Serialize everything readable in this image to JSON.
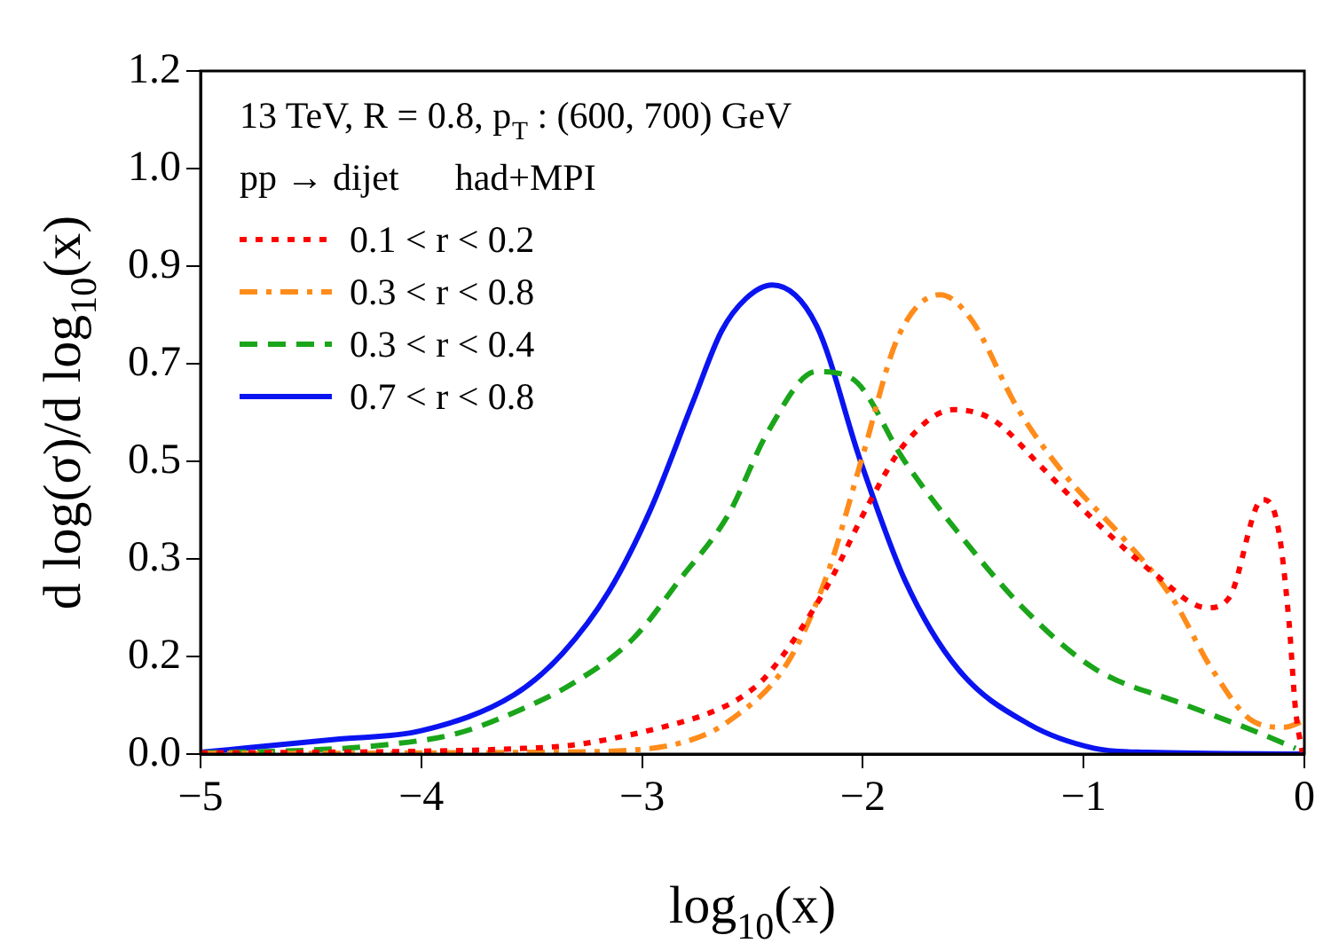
{
  "chart_data": {
    "type": "line",
    "xlabel": "log$_{10}$(x)",
    "ylabel": "d log(σ)/d log$_{10}$(x)",
    "annotations": [
      "13 TeV, R = 0.8, p$_{T}$ : (600, 700) GeV",
      "pp → dijet      had+MPI"
    ],
    "xlim": [
      -5,
      0
    ],
    "xticks": [
      -5,
      -4,
      -3,
      -2,
      -1,
      0
    ],
    "ylim": [
      0,
      1.2
    ],
    "yticks": [
      {
        "value": 0,
        "label": "0.0"
      },
      {
        "value": 0.1714,
        "label": "0.2"
      },
      {
        "value": 0.3429,
        "label": "0.3"
      },
      {
        "value": 0.5143,
        "label": "0.5"
      },
      {
        "value": 0.6857,
        "label": "0.7"
      },
      {
        "value": 0.8571,
        "label": "0.9"
      },
      {
        "value": 1.0286,
        "label": "1.0"
      },
      1.2
    ],
    "grid": false,
    "legend": "top left",
    "marker": "none",
    "series": [
      {
        "name": "0.1 < r < 0.2",
        "color": "#ff0000",
        "line_style": "dotted",
        "x": [
          -5,
          -4.5,
          -4,
          -3.6,
          -3.31,
          -2.91,
          -2.69,
          -2.55,
          -2.43,
          -2.16,
          -1.97,
          -1.81,
          -1.59,
          -1.41,
          -1.19,
          -0.95,
          -0.68,
          -0.44,
          -0.34,
          -0.19,
          -0.12,
          -0.07,
          -0.04,
          -0.01
        ],
        "values": [
          0.002,
          0.003,
          0.005,
          0.009,
          0.016,
          0.047,
          0.073,
          0.1,
          0.14,
          0.296,
          0.442,
          0.545,
          0.605,
          0.587,
          0.504,
          0.41,
          0.317,
          0.257,
          0.275,
          0.447,
          0.4,
          0.234,
          0.078,
          0.003
        ]
      },
      {
        "name": "0.3 < r < 0.8",
        "color": "#ff8c1a",
        "line_style": "dashdot",
        "x": [
          -5,
          -4.5,
          -4,
          -3.5,
          -3.04,
          -2.77,
          -2.61,
          -2.34,
          -2.16,
          -2,
          -1.84,
          -1.65,
          -1.51,
          -1.3,
          -1.09,
          -0.82,
          -0.6,
          -0.42,
          -0.23,
          -0.09,
          -0.01
        ],
        "values": [
          0.001,
          0.001,
          0.002,
          0.003,
          0.007,
          0.026,
          0.057,
          0.161,
          0.317,
          0.525,
          0.733,
          0.807,
          0.764,
          0.608,
          0.493,
          0.379,
          0.275,
          0.15,
          0.057,
          0.047,
          0.057
        ]
      },
      {
        "name": "0.3 < r < 0.4",
        "color": "#1aa51a",
        "line_style": "dashed",
        "x": [
          -5,
          -4.5,
          -4.17,
          -3.84,
          -3.58,
          -3.31,
          -3.04,
          -2.83,
          -2.61,
          -2.43,
          -2.21,
          -2.05,
          -1.81,
          -1.57,
          -1.27,
          -0.95,
          -0.55,
          -0.23,
          -0.04
        ],
        "values": [
          0.002,
          0.007,
          0.016,
          0.036,
          0.073,
          0.125,
          0.203,
          0.306,
          0.42,
          0.566,
          0.672,
          0.66,
          0.514,
          0.39,
          0.255,
          0.15,
          0.088,
          0.041,
          0.01
        ]
      },
      {
        "name": "0.7 < r < 0.8",
        "color": "#0a14f0",
        "line_style": "solid",
        "x": [
          -5,
          -4.38,
          -4,
          -3.58,
          -3.36,
          -3.15,
          -2.96,
          -2.77,
          -2.64,
          -2.53,
          -2.41,
          -2.21,
          -2.01,
          -1.81,
          -1.57,
          -1.25,
          -0.95,
          -0.71,
          0
        ],
        "values": [
          0.003,
          0.026,
          0.041,
          0.104,
          0.177,
          0.286,
          0.431,
          0.618,
          0.743,
          0.8,
          0.824,
          0.753,
          0.514,
          0.306,
          0.15,
          0.053,
          0.01,
          0.003,
          0
        ]
      }
    ]
  }
}
